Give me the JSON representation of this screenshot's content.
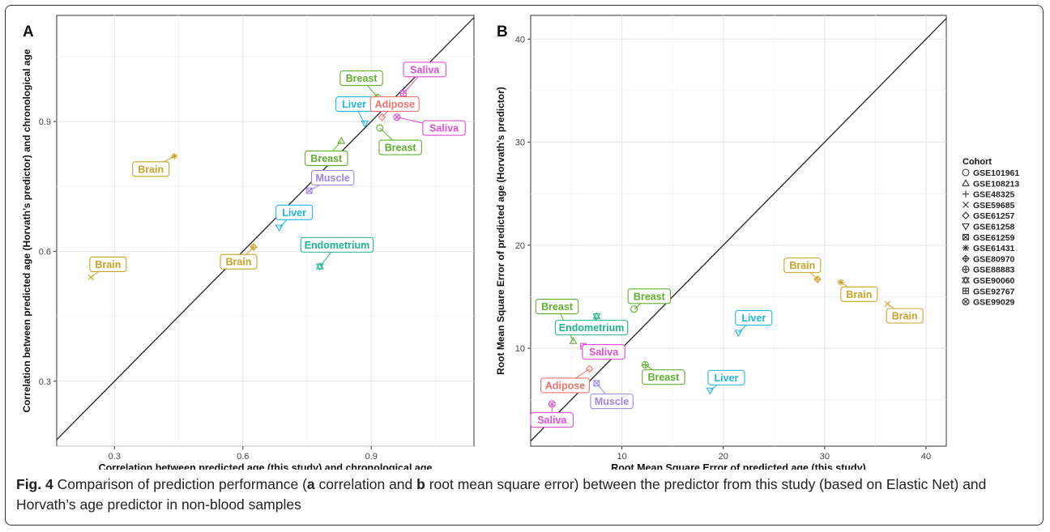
{
  "caption": {
    "fig_label": "Fig. 4",
    "t1": " Comparison of prediction performance (",
    "a": "a",
    "t2": " correlation and ",
    "b": "b",
    "t3": " root mean square error) between the predictor from this study (based on Elastic Net) and Horvath’s age predictor in non-blood samples"
  },
  "legend": {
    "title": "Cohort",
    "entries": [
      {
        "name": "GSE101961",
        "shape": "circle"
      },
      {
        "name": "GSE108213",
        "shape": "triangle"
      },
      {
        "name": "GSE48325",
        "shape": "plus"
      },
      {
        "name": "GSE59685",
        "shape": "cross"
      },
      {
        "name": "GSE61257",
        "shape": "diamond"
      },
      {
        "name": "GSE61258",
        "shape": "triangle-down"
      },
      {
        "name": "GSE61259",
        "shape": "square-cross"
      },
      {
        "name": "GSE61431",
        "shape": "asterisk"
      },
      {
        "name": "GSE80970",
        "shape": "diamond-plus"
      },
      {
        "name": "GSE88883",
        "shape": "circle-plus"
      },
      {
        "name": "GSE90060",
        "shape": "star-of-david"
      },
      {
        "name": "GSE92767",
        "shape": "square-plus"
      },
      {
        "name": "GSE99029",
        "shape": "circle-cross"
      }
    ]
  },
  "tissue_colors": {
    "Brain": "#C9A227",
    "Breast": "#5DB02E",
    "Saliva": "#E04FD3",
    "Liver": "#1FB7E0",
    "Adipose": "#F2706A",
    "Muscle": "#9D83E8",
    "Endometrium": "#20B38D"
  },
  "chart_data": [
    {
      "type": "scatter",
      "panel_label": "A",
      "xlabel": "Correlation between predicted age (this study) and chronological age",
      "ylabel": "Correlation between predicted age (Horvath’s predictor) and chronological age",
      "xlim": [
        0.165,
        1.14
      ],
      "ylim": [
        0.15,
        1.145
      ],
      "xticks": [
        0.3,
        0.6,
        0.9
      ],
      "xtick_labels": [
        "0.3",
        "0.6",
        "0.9"
      ],
      "yticks": [
        0.3,
        0.6,
        0.9
      ],
      "ytick_labels": [
        "0.3",
        "0.6",
        "0.9"
      ],
      "grid": true,
      "identity_line": true,
      "points": [
        {
          "x": 0.44,
          "y": 0.82,
          "tissue": "Brain",
          "cohort": "GSE61431",
          "label": "Brain",
          "lx": 0.385,
          "ly": 0.79
        },
        {
          "x": 0.245,
          "y": 0.54,
          "tissue": "Brain",
          "cohort": "GSE59685",
          "label": "Brain",
          "lx": 0.285,
          "ly": 0.57
        },
        {
          "x": 0.625,
          "y": 0.61,
          "tissue": "Brain",
          "cohort": "GSE80970",
          "label": "Brain",
          "lx": 0.59,
          "ly": 0.576
        },
        {
          "x": 0.915,
          "y": 0.955,
          "tissue": "Breast",
          "cohort": "GSE88883",
          "label": "Breast",
          "lx": 0.877,
          "ly": 1.0
        },
        {
          "x": 0.92,
          "y": 0.885,
          "tissue": "Breast",
          "cohort": "GSE101961",
          "label": "Breast",
          "lx": 0.968,
          "ly": 0.84
        },
        {
          "x": 0.83,
          "y": 0.855,
          "tissue": "Breast",
          "cohort": "GSE108213",
          "label": "Breast",
          "lx": 0.795,
          "ly": 0.815
        },
        {
          "x": 0.975,
          "y": 0.965,
          "tissue": "Saliva",
          "cohort": "GSE92767",
          "label": "Saliva",
          "lx": 1.025,
          "ly": 1.02
        },
        {
          "x": 0.96,
          "y": 0.91,
          "tissue": "Saliva",
          "cohort": "GSE99029",
          "label": "Saliva",
          "lx": 1.07,
          "ly": 0.885
        },
        {
          "x": 0.885,
          "y": 0.895,
          "tissue": "Liver",
          "cohort": "GSE61258",
          "label": "Liver",
          "lx": 0.86,
          "ly": 0.94
        },
        {
          "x": 0.685,
          "y": 0.655,
          "tissue": "Liver",
          "cohort": "GSE61258",
          "label": "Liver",
          "lx": 0.72,
          "ly": 0.69
        },
        {
          "x": 0.925,
          "y": 0.91,
          "tissue": "Adipose",
          "cohort": "GSE61257",
          "label": "Adipose",
          "lx": 0.955,
          "ly": 0.94
        },
        {
          "x": 0.755,
          "y": 0.74,
          "tissue": "Muscle",
          "cohort": "GSE61259",
          "label": "Muscle",
          "lx": 0.81,
          "ly": 0.77
        },
        {
          "x": 0.78,
          "y": 0.565,
          "tissue": "Endometrium",
          "cohort": "GSE90060",
          "label": "Endometrium",
          "lx": 0.82,
          "ly": 0.615
        }
      ]
    },
    {
      "type": "scatter",
      "panel_label": "B",
      "xlabel": "Root Mean Square Error of predicted age (this study)",
      "ylabel": "Root Mean Square Error of predicted age (Horvath’s predictor)",
      "xlim": [
        1.0,
        42.0
      ],
      "ylim": [
        0.5,
        42.3
      ],
      "xticks": [
        10,
        20,
        30,
        40
      ],
      "xtick_labels": [
        "10",
        "20",
        "30",
        "40"
      ],
      "yticks": [
        10,
        20,
        30,
        40
      ],
      "ytick_labels": [
        "10",
        "20",
        "30",
        "40"
      ],
      "grid": true,
      "identity_line": true,
      "points": [
        {
          "x": 29.3,
          "y": 16.7,
          "tissue": "Brain",
          "cohort": "GSE80970",
          "label": "Brain",
          "lx": 27.8,
          "ly": 18.05
        },
        {
          "x": 31.6,
          "y": 16.4,
          "tissue": "Brain",
          "cohort": "GSE61431",
          "label": "Brain",
          "lx": 33.4,
          "ly": 15.25
        },
        {
          "x": 36.2,
          "y": 14.3,
          "tissue": "Brain",
          "cohort": "GSE59685",
          "label": "Brain",
          "lx": 37.9,
          "ly": 13.15
        },
        {
          "x": 11.2,
          "y": 13.8,
          "tissue": "Breast",
          "cohort": "GSE101961",
          "label": "Breast",
          "lx": 12.7,
          "ly": 15.05
        },
        {
          "x": 5.2,
          "y": 10.7,
          "tissue": "Breast",
          "cohort": "GSE108213",
          "label": "Breast",
          "lx": 3.6,
          "ly": 14.05
        },
        {
          "x": 12.3,
          "y": 8.4,
          "tissue": "Breast",
          "cohort": "GSE88883",
          "label": "Breast",
          "lx": 14.1,
          "ly": 7.2
        },
        {
          "x": 7.5,
          "y": 13.1,
          "tissue": "Endometrium",
          "cohort": "GSE90060",
          "label": "Endometrium",
          "lx": 7.0,
          "ly": 12.0
        },
        {
          "x": 6.2,
          "y": 10.2,
          "tissue": "Saliva",
          "cohort": "GSE92767",
          "label": "Saliva",
          "lx": 8.2,
          "ly": 9.65
        },
        {
          "x": 3.1,
          "y": 4.6,
          "tissue": "Saliva",
          "cohort": "GSE99029",
          "label": "Saliva",
          "lx": 3.1,
          "ly": 3.05
        },
        {
          "x": 21.5,
          "y": 11.5,
          "tissue": "Liver",
          "cohort": "GSE61258",
          "label": "Liver",
          "lx": 23.0,
          "ly": 12.95
        },
        {
          "x": 18.7,
          "y": 5.9,
          "tissue": "Liver",
          "cohort": "GSE61258",
          "label": "Liver",
          "lx": 20.3,
          "ly": 7.15
        },
        {
          "x": 6.8,
          "y": 8.0,
          "tissue": "Adipose",
          "cohort": "GSE61257",
          "label": "Adipose",
          "lx": 4.4,
          "ly": 6.4
        },
        {
          "x": 7.5,
          "y": 6.6,
          "tissue": "Muscle",
          "cohort": "GSE61259",
          "label": "Muscle",
          "lx": 9.0,
          "ly": 4.85
        }
      ]
    }
  ]
}
